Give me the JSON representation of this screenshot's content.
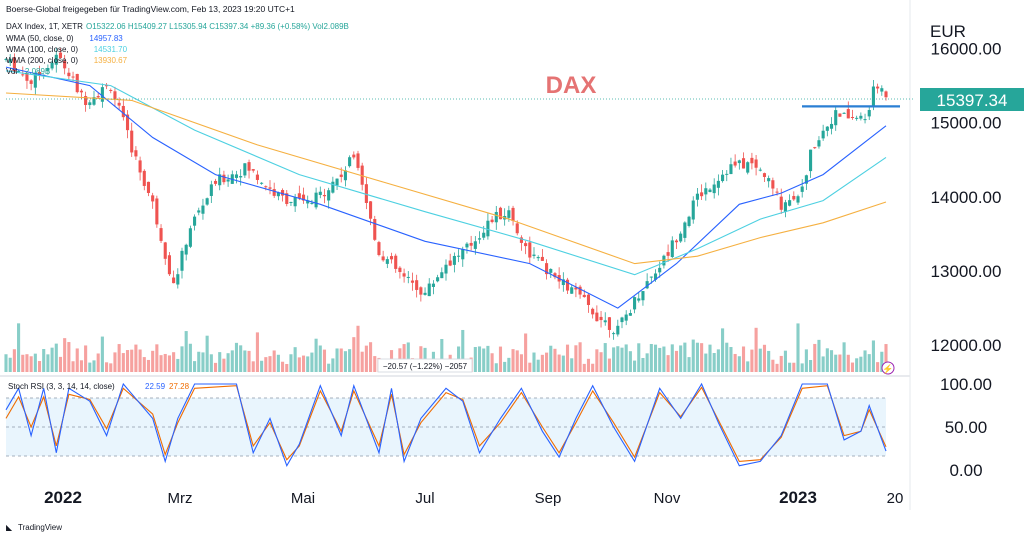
{
  "header": {
    "credit": "Boerse-Global freigegeben für TradingView.com, Feb 13, 2023 19:20 UTC+1",
    "symbol": "DAX Index, 1T, XETR",
    "ohlc": "O15322.06  H15409.27  L15305.94  C15397.34  +89.36 (+0.58%)  Vol2.089B",
    "legend": [
      {
        "label": "WMA (50, close, 0)",
        "value": "14957.83",
        "color": "#2962ff"
      },
      {
        "label": "WMA (100, close, 0)",
        "value": "14531.70",
        "color": "#4dd0e1"
      },
      {
        "label": "WMA (200, close, 0)",
        "value": "13930.67",
        "color": "#f5b041"
      },
      {
        "label": "Vol",
        "value": "2.089B",
        "color": "#26a69a"
      }
    ]
  },
  "title": "DAX",
  "currency": "EUR",
  "last_price": "15397.34",
  "crosshair_readout": "−20.57 (−1.22%) −2057",
  "stoch": {
    "label": "Stoch RSI (3, 3, 14, 14, close)",
    "k": "22.59",
    "d": "27.28"
  },
  "footer": {
    "brand": "TradingView"
  },
  "colors": {
    "up": "#26a69a",
    "down": "#ef5350",
    "wma50": "#2962ff",
    "wma100": "#4dd0e1",
    "wma200": "#f5b041",
    "title": "#e57373",
    "last": "#26a69a"
  },
  "chart_data": {
    "type": "candlestick",
    "ylim": [
      11800,
      16250
    ],
    "yticks": [
      "16000.00",
      "15000.00",
      "14000.00",
      "13000.00",
      "12000.00"
    ],
    "xticks": [
      "2022",
      "Mrz",
      "Mai",
      "Jul",
      "Sep",
      "Nov",
      "2023",
      "20"
    ],
    "stoch_yticks": [
      "100.00",
      "50.00",
      "0.00"
    ],
    "resistance_level": 15220,
    "price_path": [
      [
        0,
        15850
      ],
      [
        12,
        15550
      ],
      [
        25,
        15900
      ],
      [
        37,
        15300
      ],
      [
        50,
        15500
      ],
      [
        62,
        14500
      ],
      [
        70,
        13900
      ],
      [
        80,
        12800
      ],
      [
        88,
        13600
      ],
      [
        100,
        14200
      ],
      [
        115,
        14400
      ],
      [
        130,
        14000
      ],
      [
        145,
        13900
      ],
      [
        160,
        14300
      ],
      [
        167,
        14600
      ],
      [
        177,
        13300
      ],
      [
        190,
        12900
      ],
      [
        200,
        12700
      ],
      [
        210,
        13100
      ],
      [
        220,
        13300
      ],
      [
        232,
        13700
      ],
      [
        240,
        13800
      ],
      [
        248,
        13300
      ],
      [
        262,
        12900
      ],
      [
        272,
        12700
      ],
      [
        282,
        12400
      ],
      [
        292,
        12200
      ],
      [
        302,
        12700
      ],
      [
        315,
        13200
      ],
      [
        330,
        14000
      ],
      [
        345,
        14400
      ],
      [
        355,
        14450
      ],
      [
        362,
        14300
      ],
      [
        370,
        13900
      ],
      [
        380,
        14100
      ],
      [
        385,
        14700
      ],
      [
        395,
        15100
      ],
      [
        410,
        15050
      ],
      [
        415,
        15500
      ],
      [
        420,
        15397
      ]
    ],
    "wma50_path": [
      [
        0,
        15750
      ],
      [
        40,
        15500
      ],
      [
        70,
        14800
      ],
      [
        100,
        14300
      ],
      [
        150,
        13900
      ],
      [
        200,
        13400
      ],
      [
        250,
        13100
      ],
      [
        292,
        12500
      ],
      [
        320,
        13100
      ],
      [
        350,
        13900
      ],
      [
        370,
        14050
      ],
      [
        390,
        14300
      ],
      [
        420,
        14958
      ]
    ],
    "wma100_path": [
      [
        0,
        15700
      ],
      [
        50,
        15500
      ],
      [
        90,
        14900
      ],
      [
        140,
        14300
      ],
      [
        200,
        13800
      ],
      [
        250,
        13400
      ],
      [
        300,
        12950
      ],
      [
        330,
        13300
      ],
      [
        360,
        13700
      ],
      [
        390,
        13950
      ],
      [
        420,
        14532
      ]
    ],
    "wma200_path": [
      [
        0,
        15400
      ],
      [
        60,
        15300
      ],
      [
        120,
        14700
      ],
      [
        180,
        14200
      ],
      [
        240,
        13700
      ],
      [
        300,
        13100
      ],
      [
        330,
        13200
      ],
      [
        360,
        13450
      ],
      [
        390,
        13650
      ],
      [
        420,
        13931
      ]
    ],
    "stoch_k_path": [
      [
        0,
        70
      ],
      [
        6,
        95
      ],
      [
        12,
        40
      ],
      [
        18,
        95
      ],
      [
        24,
        20
      ],
      [
        30,
        95
      ],
      [
        40,
        80
      ],
      [
        48,
        40
      ],
      [
        56,
        100
      ],
      [
        70,
        60
      ],
      [
        76,
        10
      ],
      [
        82,
        60
      ],
      [
        90,
        100
      ],
      [
        110,
        100
      ],
      [
        118,
        20
      ],
      [
        126,
        60
      ],
      [
        134,
        5
      ],
      [
        140,
        30
      ],
      [
        150,
        98
      ],
      [
        160,
        40
      ],
      [
        166,
        98
      ],
      [
        178,
        20
      ],
      [
        184,
        95
      ],
      [
        190,
        10
      ],
      [
        198,
        60
      ],
      [
        210,
        95
      ],
      [
        218,
        80
      ],
      [
        226,
        20
      ],
      [
        236,
        60
      ],
      [
        246,
        95
      ],
      [
        256,
        45
      ],
      [
        264,
        15
      ],
      [
        272,
        60
      ],
      [
        280,
        98
      ],
      [
        290,
        50
      ],
      [
        300,
        10
      ],
      [
        312,
        95
      ],
      [
        322,
        60
      ],
      [
        332,
        100
      ],
      [
        340,
        55
      ],
      [
        350,
        5
      ],
      [
        360,
        10
      ],
      [
        370,
        40
      ],
      [
        380,
        100
      ],
      [
        392,
        100
      ],
      [
        400,
        35
      ],
      [
        408,
        45
      ],
      [
        412,
        75
      ],
      [
        420,
        22
      ]
    ],
    "stoch_d_path": [
      [
        0,
        60
      ],
      [
        6,
        85
      ],
      [
        12,
        50
      ],
      [
        18,
        85
      ],
      [
        24,
        28
      ],
      [
        30,
        88
      ],
      [
        40,
        82
      ],
      [
        48,
        48
      ],
      [
        56,
        95
      ],
      [
        70,
        65
      ],
      [
        76,
        18
      ],
      [
        82,
        55
      ],
      [
        90,
        95
      ],
      [
        110,
        98
      ],
      [
        118,
        28
      ],
      [
        126,
        55
      ],
      [
        134,
        12
      ],
      [
        140,
        28
      ],
      [
        150,
        92
      ],
      [
        160,
        45
      ],
      [
        166,
        92
      ],
      [
        178,
        28
      ],
      [
        184,
        88
      ],
      [
        190,
        18
      ],
      [
        198,
        55
      ],
      [
        210,
        90
      ],
      [
        218,
        82
      ],
      [
        226,
        28
      ],
      [
        236,
        55
      ],
      [
        246,
        90
      ],
      [
        256,
        50
      ],
      [
        264,
        20
      ],
      [
        272,
        55
      ],
      [
        280,
        92
      ],
      [
        290,
        55
      ],
      [
        300,
        15
      ],
      [
        312,
        90
      ],
      [
        322,
        62
      ],
      [
        332,
        96
      ],
      [
        340,
        58
      ],
      [
        350,
        10
      ],
      [
        360,
        12
      ],
      [
        370,
        38
      ],
      [
        380,
        95
      ],
      [
        392,
        98
      ],
      [
        400,
        40
      ],
      [
        408,
        45
      ],
      [
        412,
        70
      ],
      [
        420,
        27
      ]
    ]
  }
}
